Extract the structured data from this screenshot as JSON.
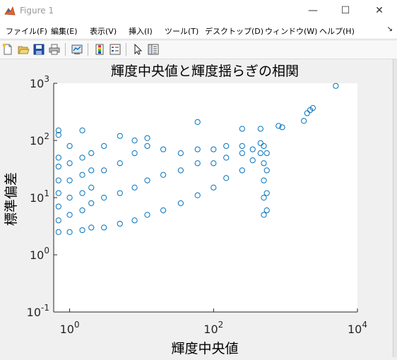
{
  "window": {
    "title": "Figure 1",
    "minimize_glyph": "—",
    "maximize_glyph": "☐",
    "close_glyph": "✕"
  },
  "menu": [
    "ファイル(F)",
    "編集(E)",
    "表示(V)",
    "挿入(I)",
    "ツール(T)",
    "デスクトップ(D)",
    "ウィンドウ(W)",
    "ヘルプ(H)"
  ],
  "menu_overflow_glyph": "↘",
  "toolbar": [
    "new-figure-icon",
    "open-file-icon",
    "save-icon",
    "print-icon",
    "link-plot-icon",
    "insert-colorbar-icon",
    "insert-legend-icon",
    "edit-plot-arrow-icon",
    "property-inspector-icon"
  ],
  "accent_color": "#0072bd",
  "chart_data": {
    "type": "scatter",
    "title": "輝度中央値と輝度揺らぎの相関",
    "xlabel": "輝度中央値",
    "ylabel": "標準偏差",
    "xscale": "log",
    "yscale": "log",
    "xlim": [
      0.6,
      10000
    ],
    "ylim": [
      0.1,
      1000
    ],
    "xticks": [
      {
        "base": "10",
        "exp": "0",
        "value": 1
      },
      {
        "base": "10",
        "exp": "2",
        "value": 100
      },
      {
        "base": "10",
        "exp": "4",
        "value": 10000
      }
    ],
    "yticks": [
      {
        "base": "10",
        "exp": "-1",
        "value": 0.1
      },
      {
        "base": "10",
        "exp": "0",
        "value": 1
      },
      {
        "base": "10",
        "exp": "1",
        "value": 10
      },
      {
        "base": "10",
        "exp": "2",
        "value": 100
      },
      {
        "base": "10",
        "exp": "3",
        "value": 1000
      }
    ],
    "marker": "circle",
    "color": "#0072bd",
    "points": [
      [
        0.7,
        2.5
      ],
      [
        0.7,
        4
      ],
      [
        0.7,
        7
      ],
      [
        0.7,
        12
      ],
      [
        0.7,
        20
      ],
      [
        0.7,
        35
      ],
      [
        0.7,
        50
      ],
      [
        0.7,
        125
      ],
      [
        0.7,
        150
      ],
      [
        1,
        2.5
      ],
      [
        1,
        5
      ],
      [
        1,
        10
      ],
      [
        1,
        20
      ],
      [
        1,
        40
      ],
      [
        1,
        80
      ],
      [
        1.5,
        2.7
      ],
      [
        1.5,
        6
      ],
      [
        1.5,
        12
      ],
      [
        1.5,
        25
      ],
      [
        1.5,
        50
      ],
      [
        1.5,
        150
      ],
      [
        2,
        3
      ],
      [
        2,
        8
      ],
      [
        2,
        15
      ],
      [
        2,
        30
      ],
      [
        2,
        60
      ],
      [
        3,
        3
      ],
      [
        3,
        10
      ],
      [
        3,
        30
      ],
      [
        3,
        80
      ],
      [
        5,
        3.5
      ],
      [
        5,
        12
      ],
      [
        5,
        40
      ],
      [
        5,
        120
      ],
      [
        8,
        4
      ],
      [
        8,
        15
      ],
      [
        8,
        60
      ],
      [
        8,
        100
      ],
      [
        12,
        5
      ],
      [
        12,
        20
      ],
      [
        12,
        80
      ],
      [
        12,
        110
      ],
      [
        20,
        6
      ],
      [
        20,
        25
      ],
      [
        20,
        70
      ],
      [
        35,
        8
      ],
      [
        35,
        30
      ],
      [
        35,
        60
      ],
      [
        60,
        11
      ],
      [
        60,
        40
      ],
      [
        60,
        70
      ],
      [
        60,
        210
      ],
      [
        100,
        15
      ],
      [
        100,
        40
      ],
      [
        100,
        70
      ],
      [
        150,
        22
      ],
      [
        150,
        50
      ],
      [
        150,
        80
      ],
      [
        250,
        30
      ],
      [
        250,
        60
      ],
      [
        250,
        80
      ],
      [
        250,
        160
      ],
      [
        350,
        45
      ],
      [
        350,
        70
      ],
      [
        450,
        60
      ],
      [
        450,
        90
      ],
      [
        450,
        160
      ],
      [
        500,
        5
      ],
      [
        500,
        10
      ],
      [
        500,
        20
      ],
      [
        500,
        40
      ],
      [
        500,
        80
      ],
      [
        550,
        6
      ],
      [
        550,
        12
      ],
      [
        550,
        30
      ],
      [
        550,
        60
      ],
      [
        800,
        180
      ],
      [
        900,
        170
      ],
      [
        1800,
        220
      ],
      [
        2000,
        300
      ],
      [
        2200,
        340
      ],
      [
        2400,
        370
      ],
      [
        5000,
        900
      ]
    ]
  }
}
